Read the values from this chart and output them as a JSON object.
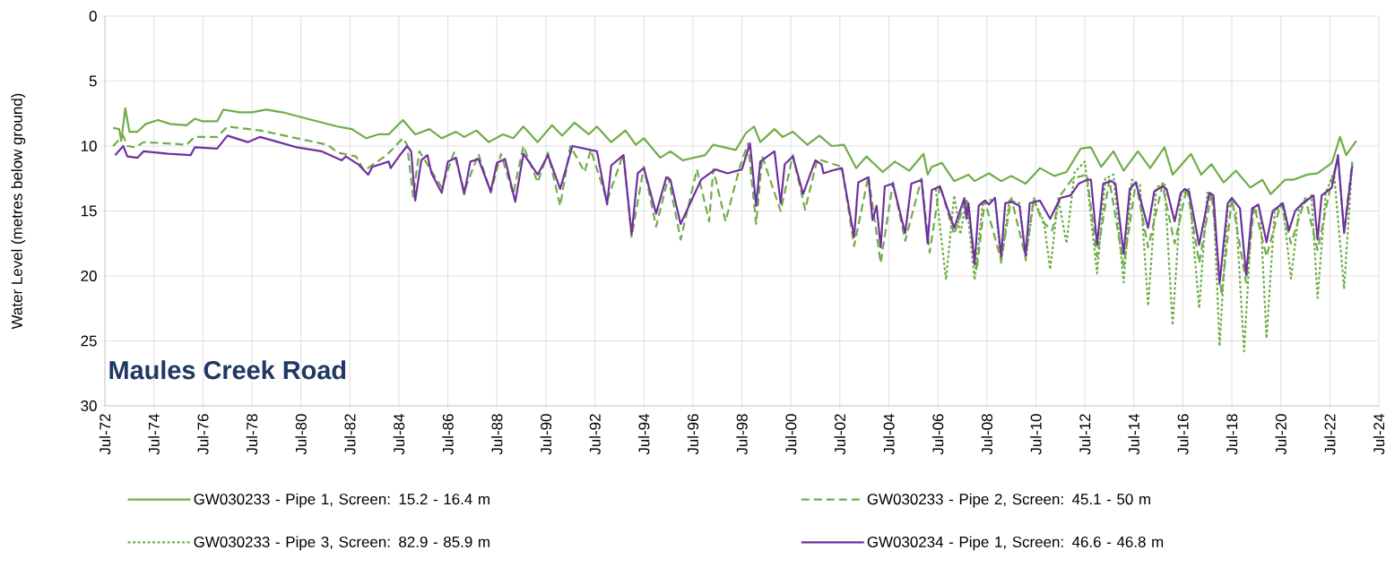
{
  "chart_data": {
    "type": "line",
    "title": "Maules Creek Road",
    "ylabel": "Water Level (metres below ground)",
    "xlim": [
      "1972-07",
      "2024-07"
    ],
    "ylim": [
      30,
      0
    ],
    "yticks": [
      0,
      5,
      10,
      15,
      20,
      25,
      30
    ],
    "xticks": [
      {
        "value": "1972-07",
        "label": "Jul-72"
      },
      {
        "value": "1974-07",
        "label": "Jul-74"
      },
      {
        "value": "1976-07",
        "label": "Jul-76"
      },
      {
        "value": "1978-07",
        "label": "Jul-78"
      },
      {
        "value": "1980-07",
        "label": "Jul-80"
      },
      {
        "value": "1982-07",
        "label": "Jul-82"
      },
      {
        "value": "1984-07",
        "label": "Jul-84"
      },
      {
        "value": "1986-07",
        "label": "Jul-86"
      },
      {
        "value": "1988-07",
        "label": "Jul-88"
      },
      {
        "value": "1990-07",
        "label": "Jul-90"
      },
      {
        "value": "1992-07",
        "label": "Jul-92"
      },
      {
        "value": "1994-07",
        "label": "Jul-94"
      },
      {
        "value": "1996-07",
        "label": "Jul-96"
      },
      {
        "value": "1998-07",
        "label": "Jul-98"
      },
      {
        "value": "2000-07",
        "label": "Jul-00"
      },
      {
        "value": "2002-07",
        "label": "Jul-02"
      },
      {
        "value": "2004-07",
        "label": "Jul-04"
      },
      {
        "value": "2006-07",
        "label": "Jul-06"
      },
      {
        "value": "2008-07",
        "label": "Jul-08"
      },
      {
        "value": "2010-07",
        "label": "Jul-10"
      },
      {
        "value": "2012-07",
        "label": "Jul-12"
      },
      {
        "value": "2014-07",
        "label": "Jul-14"
      },
      {
        "value": "2016-07",
        "label": "Jul-16"
      },
      {
        "value": "2018-07",
        "label": "Jul-18"
      },
      {
        "value": "2020-07",
        "label": "Jul-20"
      },
      {
        "value": "2022-07",
        "label": "Jul-22"
      },
      {
        "value": "2024-07",
        "label": "Jul-24"
      }
    ],
    "grid": true,
    "legend": "bottom",
    "series": [
      {
        "name": "GW030233 - Pipe 1, Screen: 15.2 - 16.4 m",
        "color": "#70ad47",
        "line_style": "solid",
        "x": [
          "1972-11",
          "1973-02",
          "1973-03",
          "1973-05",
          "1973-07",
          "1973-11",
          "1974-03",
          "1974-09",
          "1975-03",
          "1975-11",
          "1976-03",
          "1976-07",
          "1977-02",
          "1977-05",
          "1978-01",
          "1978-07",
          "1979-02",
          "1979-10",
          "1980-10",
          "1982-01",
          "1982-08",
          "1983-03",
          "1983-09",
          "1984-02",
          "1984-09",
          "1985-03",
          "1985-10",
          "1986-04",
          "1986-11",
          "1987-03",
          "1987-09",
          "1988-03",
          "1988-10",
          "1989-03",
          "1989-08",
          "1990-03",
          "1990-10",
          "1991-03",
          "1991-09",
          "1992-04",
          "1992-08",
          "1993-03",
          "1993-10",
          "1994-03",
          "1994-07",
          "1995-03",
          "1995-08",
          "1996-02",
          "1997-01",
          "1997-05",
          "1998-04",
          "1998-09",
          "1999-01",
          "1999-04",
          "1999-11",
          "2000-03",
          "2000-08",
          "2001-03",
          "2001-09",
          "2002-03",
          "2002-09",
          "2003-03",
          "2003-08",
          "2004-04",
          "2004-10",
          "2005-05",
          "2005-12",
          "2006-02",
          "2006-04",
          "2006-09",
          "2007-03",
          "2007-10",
          "2008-01",
          "2008-08",
          "2009-02",
          "2009-07",
          "2010-02",
          "2010-09",
          "2011-04",
          "2011-10",
          "2012-05",
          "2012-10",
          "2013-03",
          "2013-09",
          "2014-02",
          "2014-09",
          "2015-03",
          "2015-10",
          "2016-02",
          "2016-11",
          "2017-04",
          "2017-09",
          "2018-03",
          "2018-09",
          "2019-04",
          "2019-10",
          "2020-02",
          "2020-09",
          "2021-01",
          "2021-08",
          "2022-01",
          "2022-08",
          "2022-12",
          "2023-03",
          "2023-08"
        ],
        "values": [
          8.6,
          8.7,
          9.6,
          7.1,
          8.9,
          8.9,
          8.3,
          8.0,
          8.3,
          8.4,
          7.9,
          8.1,
          8.1,
          7.2,
          7.4,
          7.4,
          7.2,
          7.4,
          7.9,
          8.5,
          8.7,
          9.4,
          9.1,
          9.1,
          8.0,
          9.1,
          8.7,
          9.4,
          8.9,
          9.3,
          8.8,
          9.7,
          9.1,
          9.4,
          8.5,
          9.7,
          8.4,
          9.2,
          8.2,
          9.1,
          8.5,
          9.7,
          8.8,
          9.9,
          9.4,
          10.9,
          10.4,
          11.1,
          10.7,
          9.9,
          10.3,
          9.0,
          8.5,
          9.7,
          8.7,
          9.3,
          8.9,
          9.9,
          9.2,
          10.0,
          9.9,
          11.7,
          10.8,
          12.0,
          11.2,
          11.9,
          10.6,
          12.2,
          11.6,
          11.3,
          12.7,
          12.2,
          12.7,
          12.1,
          12.7,
          12.3,
          12.9,
          11.7,
          12.3,
          12.0,
          10.2,
          10.1,
          11.6,
          10.4,
          11.9,
          10.4,
          11.7,
          10.1,
          12.2,
          10.6,
          12.2,
          11.4,
          12.8,
          11.9,
          13.2,
          12.6,
          13.7,
          12.6,
          12.6,
          12.2,
          12.1,
          11.3,
          9.3,
          10.7,
          9.6
        ]
      },
      {
        "name": "GW030233 - Pipe 2, Screen: 45.1 - 50 m",
        "color": "#70ad47",
        "line_style": "dashed",
        "x": [
          "1972-11",
          "1973-04",
          "1973-06",
          "1973-10",
          "1974-02",
          "1975-02",
          "1975-11",
          "1976-03",
          "1977-02",
          "1977-07",
          "1978-11",
          "1980-05",
          "1981-08",
          "1982-01",
          "1982-10",
          "1983-02",
          "1984-01",
          "1984-09",
          "1984-11",
          "1985-02",
          "1985-05",
          "1986-04",
          "1986-10",
          "1987-03",
          "1987-10",
          "1988-04",
          "1988-09",
          "1989-03",
          "1989-08",
          "1990-03",
          "1990-08",
          "1991-02",
          "1991-07",
          "1992-02",
          "1992-05",
          "1993-01",
          "1993-09",
          "1994-01",
          "1994-07",
          "1995-01",
          "1995-07",
          "1996-01",
          "1996-09",
          "1997-03",
          "1997-05",
          "1997-11",
          "1998-06",
          "1998-10",
          "1999-02",
          "1999-05",
          "2000-02",
          "2000-08",
          "2001-02",
          "2001-08",
          "2002-08",
          "2003-02",
          "2003-09",
          "2004-03",
          "2004-09",
          "2005-03",
          "2005-11",
          "2006-03",
          "2006-08",
          "2007-03",
          "2007-09",
          "2008-02",
          "2008-06",
          "2009-02",
          "2009-07",
          "2010-02",
          "2010-06",
          "2010-10",
          "2011-03",
          "2011-07",
          "2012-01",
          "2012-08",
          "2013-01",
          "2013-07",
          "2014-02",
          "2014-08",
          "2015-02",
          "2015-09",
          "2016-03",
          "2016-09",
          "2017-03",
          "2017-09",
          "2018-02",
          "2018-07",
          "2019-02",
          "2019-06",
          "2019-12",
          "2020-07",
          "2020-12",
          "2021-07",
          "2022-01",
          "2022-08",
          "2022-11",
          "2023-02",
          "2023-06"
        ],
        "values": [
          10.0,
          9.2,
          10.0,
          10.1,
          9.7,
          9.8,
          9.9,
          9.3,
          9.3,
          8.5,
          8.8,
          9.4,
          9.9,
          10.5,
          10.8,
          11.9,
          10.7,
          9.4,
          9.9,
          13.9,
          10.4,
          13.2,
          10.5,
          13.5,
          10.6,
          13.6,
          10.6,
          13.7,
          10.0,
          12.8,
          10.5,
          14.6,
          10.0,
          12.0,
          10.3,
          14.2,
          10.6,
          17.0,
          11.6,
          16.2,
          12.4,
          17.2,
          11.8,
          15.8,
          11.8,
          15.8,
          11.6,
          9.8,
          16.0,
          10.8,
          15.0,
          10.7,
          14.9,
          11.0,
          11.6,
          17.7,
          12.3,
          19.0,
          12.8,
          17.3,
          12.5,
          18.2,
          13.0,
          16.8,
          14.0,
          19.6,
          14.2,
          18.8,
          14.0,
          18.6,
          14.0,
          15.8,
          16.5,
          13.8,
          12.5,
          12.2,
          18.5,
          12.6,
          19.2,
          12.8,
          17.8,
          13.0,
          17.5,
          13.2,
          19.0,
          13.6,
          21.5,
          14.0,
          20.5,
          14.6,
          18.5,
          14.4,
          17.5,
          14.0,
          18.0,
          12.6,
          11.0,
          16.5,
          11.2
        ]
      },
      {
        "name": "GW030233 - Pipe 3, Screen: 82.9 - 85.9 m",
        "color": "#70ad47",
        "line_style": "dotted",
        "x": [
          "2006-06",
          "2006-11",
          "2007-03",
          "2007-06",
          "2007-09",
          "2008-01",
          "2008-05",
          "2008-11",
          "2009-02",
          "2009-06",
          "2009-11",
          "2010-02",
          "2010-06",
          "2010-11",
          "2011-02",
          "2011-06",
          "2011-10",
          "2012-02",
          "2012-07",
          "2013-01",
          "2013-05",
          "2013-09",
          "2014-02",
          "2014-06",
          "2014-10",
          "2015-02",
          "2015-06",
          "2015-10",
          "2016-02",
          "2016-06",
          "2016-10",
          "2017-03",
          "2017-07",
          "2017-10",
          "2018-01",
          "2018-05",
          "2018-09",
          "2019-01",
          "2019-05",
          "2019-09",
          "2019-12",
          "2020-04",
          "2020-08",
          "2020-12",
          "2021-04",
          "2021-10",
          "2022-01",
          "2022-05",
          "2022-09",
          "2023-02",
          "2023-06"
        ],
        "values": [
          13.3,
          20.3,
          13.8,
          16.8,
          14.2,
          20.3,
          14.4,
          14.0,
          19.0,
          14.2,
          14.4,
          18.8,
          14.2,
          15.8,
          19.5,
          14.0,
          17.5,
          12.0,
          11.2,
          19.8,
          12.5,
          12.2,
          20.5,
          12.6,
          13.0,
          22.3,
          13.2,
          12.8,
          23.8,
          13.8,
          13.3,
          22.5,
          13.6,
          14.0,
          25.4,
          14.5,
          15.0,
          25.8,
          14.8,
          15.2,
          24.8,
          15.0,
          14.6,
          20.2,
          14.8,
          13.8,
          21.7,
          13.6,
          12.0,
          21.0,
          11.2
        ]
      },
      {
        "name": "GW030234 - Pipe 1, Screen: 46.6 - 46.8 m",
        "color": "#7030a0",
        "line_style": "solid",
        "x": [
          "1972-12",
          "1973-04",
          "1973-06",
          "1973-11",
          "1974-02",
          "1975-02",
          "1976-01",
          "1976-03",
          "1977-02",
          "1977-07",
          "1978-05",
          "1978-11",
          "1979-08",
          "1980-05",
          "1981-05",
          "1982-03",
          "1982-05",
          "1982-11",
          "1983-04",
          "1983-06",
          "1984-02",
          "1984-03",
          "1984-08",
          "1984-11",
          "1985-01",
          "1985-03",
          "1985-06",
          "1985-09",
          "1985-11",
          "1986-04",
          "1986-07",
          "1986-11",
          "1987-03",
          "1987-06",
          "1987-10",
          "1988-04",
          "1988-07",
          "1988-11",
          "1989-04",
          "1989-08",
          "1990-03",
          "1990-08",
          "1991-02",
          "1991-08",
          "1992-08",
          "1993-01",
          "1993-03",
          "1993-09",
          "1994-01",
          "1994-04",
          "1994-07",
          "1995-01",
          "1995-06",
          "1995-08",
          "1996-01",
          "1996-11",
          "1997-06",
          "1997-12",
          "1998-07",
          "1998-11",
          "1999-02",
          "1999-04",
          "1999-11",
          "2000-02",
          "2000-04",
          "2000-08",
          "2001-01",
          "2001-07",
          "2001-10",
          "2001-11",
          "2002-03",
          "2002-08",
          "2003-02",
          "2003-04",
          "2003-09",
          "2003-11",
          "2004-01",
          "2004-03",
          "2004-05",
          "2004-09",
          "2005-03",
          "2005-06",
          "2005-11",
          "2006-02",
          "2006-04",
          "2006-08",
          "2007-03",
          "2007-08",
          "2007-09",
          "2007-10",
          "2008-01",
          "2008-03",
          "2008-06",
          "2008-08",
          "2008-11",
          "2009-02",
          "2009-04",
          "2009-07",
          "2009-11",
          "2010-02",
          "2010-04",
          "2010-09",
          "2011-02",
          "2011-07",
          "2011-12",
          "2012-04",
          "2012-08",
          "2012-10",
          "2013-01",
          "2013-04",
          "2013-08",
          "2013-10",
          "2014-02",
          "2014-05",
          "2014-08",
          "2015-02",
          "2015-05",
          "2015-09",
          "2015-11",
          "2016-03",
          "2016-06",
          "2016-08",
          "2016-10",
          "2017-03",
          "2017-08",
          "2017-10",
          "2018-01",
          "2018-05",
          "2018-07",
          "2018-11",
          "2019-02",
          "2019-05",
          "2019-08",
          "2019-12",
          "2020-03",
          "2020-08",
          "2020-11",
          "2021-02",
          "2021-05",
          "2021-11",
          "2022-01",
          "2022-03",
          "2022-08",
          "2022-11",
          "2023-02",
          "2023-06"
        ],
        "values": [
          10.7,
          10.0,
          10.8,
          10.9,
          10.4,
          10.6,
          10.7,
          10.1,
          10.2,
          9.2,
          9.7,
          9.3,
          9.7,
          10.1,
          10.4,
          11.1,
          10.8,
          11.4,
          12.2,
          11.6,
          11.2,
          11.7,
          10.6,
          10.0,
          10.4,
          14.2,
          11.1,
          10.7,
          12.1,
          13.6,
          11.2,
          10.9,
          13.7,
          11.2,
          11.0,
          13.5,
          11.3,
          11.0,
          14.3,
          10.6,
          12.2,
          10.7,
          13.3,
          10.0,
          10.4,
          14.5,
          11.5,
          10.7,
          16.8,
          12.1,
          11.7,
          15.2,
          12.4,
          12.6,
          16.0,
          12.6,
          11.8,
          12.1,
          11.8,
          9.8,
          14.6,
          11.2,
          10.4,
          14.4,
          11.4,
          10.8,
          13.7,
          11.1,
          11.4,
          12.1,
          11.9,
          11.7,
          17.0,
          12.8,
          12.4,
          15.7,
          14.6,
          17.8,
          13.1,
          12.9,
          16.7,
          12.9,
          12.6,
          17.5,
          13.4,
          13.1,
          16.3,
          14.0,
          15.6,
          14.4,
          19.1,
          14.6,
          14.2,
          14.5,
          14.0,
          18.5,
          14.4,
          14.3,
          14.6,
          18.4,
          14.4,
          14.2,
          15.6,
          14.0,
          13.8,
          12.9,
          12.6,
          12.6,
          17.6,
          12.9,
          12.7,
          12.9,
          18.3,
          13.3,
          12.8,
          16.3,
          13.5,
          13.1,
          13.3,
          15.8,
          13.6,
          13.3,
          13.5,
          17.6,
          13.6,
          13.8,
          20.6,
          14.4,
          14.0,
          14.8,
          19.9,
          14.8,
          14.5,
          17.4,
          15.0,
          14.4,
          16.5,
          15.0,
          14.5,
          13.8,
          17.2,
          13.8,
          13.2,
          10.7,
          16.7,
          11.5
        ]
      }
    ]
  }
}
